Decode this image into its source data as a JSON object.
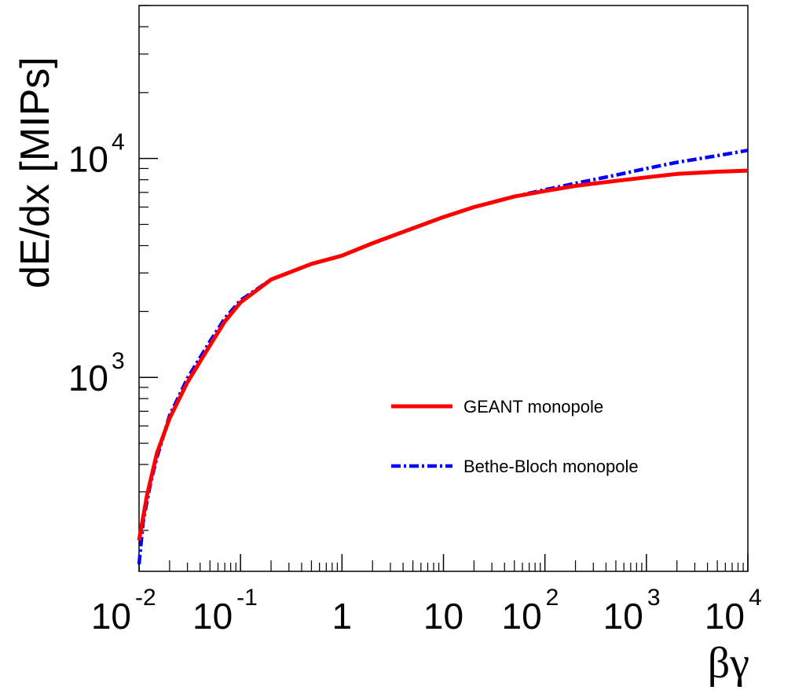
{
  "chart_data": {
    "type": "line",
    "title": "",
    "xlabel": "βγ",
    "ylabel": "dE/dx [MIPs]",
    "x_scale": "log",
    "y_scale": "log",
    "xlim": [
      0.01,
      10000
    ],
    "ylim": [
      130,
      50000
    ],
    "x_tick_labels": [
      {
        "value": 0.01,
        "base": "10",
        "exp": "-2"
      },
      {
        "value": 0.1,
        "base": "10",
        "exp": "-1"
      },
      {
        "value": 1,
        "base": "1",
        "exp": ""
      },
      {
        "value": 10,
        "base": "10",
        "exp": ""
      },
      {
        "value": 100,
        "base": "10",
        "exp": "2"
      },
      {
        "value": 1000,
        "base": "10",
        "exp": "3"
      },
      {
        "value": 10000,
        "base": "10",
        "exp": "4"
      }
    ],
    "y_tick_labels": [
      {
        "value": 1000,
        "base": "10",
        "exp": "3"
      },
      {
        "value": 10000,
        "base": "10",
        "exp": "4"
      }
    ],
    "grid": false,
    "legend_position": "lower-right",
    "series": [
      {
        "name": "GEANT monopole",
        "color": "#ff0000",
        "style": "solid",
        "x": [
          0.01,
          0.012,
          0.015,
          0.02,
          0.03,
          0.05,
          0.07,
          0.1,
          0.2,
          0.5,
          1,
          2,
          5,
          10,
          20,
          50,
          100,
          200,
          500,
          1000,
          2000,
          5000,
          10000
        ],
        "y": [
          180,
          290,
          450,
          650,
          950,
          1400,
          1800,
          2200,
          2800,
          3300,
          3600,
          4100,
          4800,
          5400,
          6000,
          6700,
          7100,
          7500,
          7900,
          8200,
          8500,
          8700,
          8800
        ]
      },
      {
        "name": "Bethe-Bloch monopole",
        "color": "#0000ff",
        "style": "dash-dot",
        "x": [
          0.01,
          0.011,
          0.013,
          0.015,
          0.02,
          0.03,
          0.05,
          0.07,
          0.1,
          0.2,
          0.5,
          1,
          2,
          5,
          10,
          20,
          50,
          100,
          200,
          500,
          1000,
          2000,
          5000,
          10000
        ],
        "y": [
          140,
          220,
          330,
          430,
          670,
          990,
          1460,
          1860,
          2250,
          2800,
          3300,
          3600,
          4100,
          4800,
          5400,
          6000,
          6700,
          7200,
          7700,
          8400,
          9000,
          9600,
          10300,
          10900
        ]
      }
    ]
  }
}
